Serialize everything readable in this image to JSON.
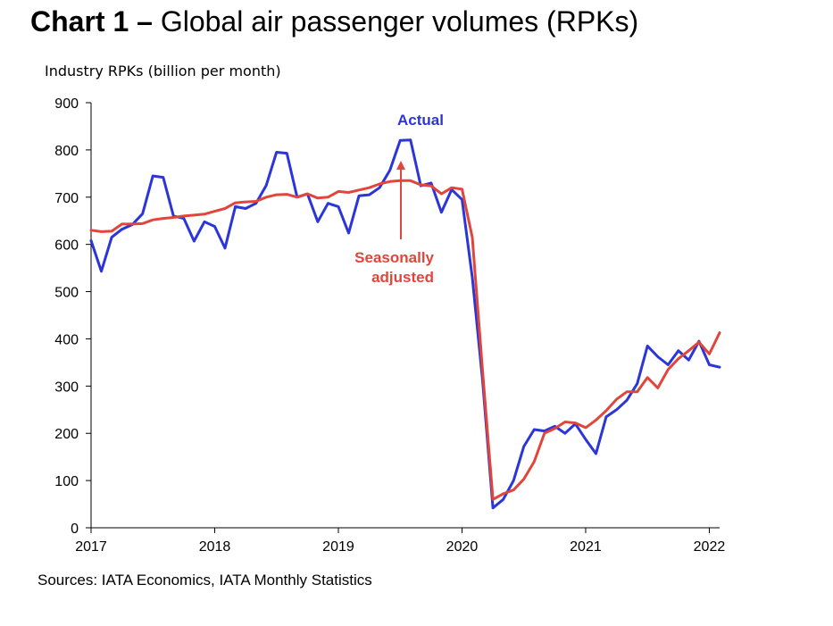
{
  "title": {
    "bold": "Chart 1 –",
    "rest": " Global air passenger volumes (RPKs)"
  },
  "source": "Sources: IATA Economics, IATA Monthly Statistics",
  "chart_data": {
    "type": "line",
    "ylabel": "Industry RPKs (billion per month)",
    "xlabel": "",
    "ylim": [
      0,
      900
    ],
    "yticks": [
      0,
      100,
      200,
      300,
      400,
      500,
      600,
      700,
      800,
      900
    ],
    "xlim": [
      "2017-01",
      "2022-02"
    ],
    "xticks": [
      "2017",
      "2018",
      "2019",
      "2020",
      "2021",
      "2022"
    ],
    "colors": {
      "actual": "#2b35d8",
      "seasonally_adjusted": "#e0463b"
    },
    "annotations": [
      {
        "text": "Actual",
        "series": "Actual"
      },
      {
        "text": "Seasonally",
        "series": "Seasonally adjusted"
      },
      {
        "text": "adjusted",
        "series": "Seasonally adjusted"
      }
    ],
    "x": [
      "2017-01",
      "2017-02",
      "2017-03",
      "2017-04",
      "2017-05",
      "2017-06",
      "2017-07",
      "2017-08",
      "2017-09",
      "2017-10",
      "2017-11",
      "2017-12",
      "2018-01",
      "2018-02",
      "2018-03",
      "2018-04",
      "2018-05",
      "2018-06",
      "2018-07",
      "2018-08",
      "2018-09",
      "2018-10",
      "2018-11",
      "2018-12",
      "2019-01",
      "2019-02",
      "2019-03",
      "2019-04",
      "2019-05",
      "2019-06",
      "2019-07",
      "2019-08",
      "2019-09",
      "2019-10",
      "2019-11",
      "2019-12",
      "2020-01",
      "2020-02",
      "2020-03",
      "2020-04",
      "2020-05",
      "2020-06",
      "2020-07",
      "2020-08",
      "2020-09",
      "2020-10",
      "2020-11",
      "2020-12",
      "2021-01",
      "2021-02",
      "2021-03",
      "2021-04",
      "2021-05",
      "2021-06",
      "2021-07",
      "2021-08",
      "2021-09",
      "2021-10",
      "2021-11",
      "2021-12",
      "2022-01",
      "2022-02"
    ],
    "series": [
      {
        "name": "Actual",
        "values": [
          608,
          543,
          615,
          632,
          642,
          665,
          745,
          742,
          660,
          655,
          607,
          648,
          638,
          592,
          680,
          676,
          687,
          725,
          795,
          793,
          700,
          707,
          648,
          687,
          680,
          624,
          703,
          705,
          720,
          757,
          820,
          821,
          724,
          730,
          668,
          716,
          695,
          530,
          310,
          42,
          60,
          100,
          172,
          208,
          205,
          215,
          200,
          220,
          187,
          157,
          235,
          250,
          270,
          305,
          385,
          362,
          345,
          375,
          355,
          395,
          345,
          340
        ]
      },
      {
        "name": "Seasonally adjusted",
        "values": [
          630,
          627,
          628,
          643,
          643,
          644,
          652,
          655,
          657,
          660,
          662,
          664,
          670,
          676,
          688,
          690,
          691,
          700,
          705,
          706,
          700,
          707,
          698,
          700,
          712,
          710,
          715,
          720,
          728,
          733,
          735,
          735,
          726,
          724,
          707,
          720,
          717,
          615,
          330,
          60,
          72,
          80,
          103,
          140,
          200,
          210,
          224,
          222,
          212,
          228,
          248,
          272,
          288,
          288,
          318,
          296,
          335,
          358,
          375,
          393,
          368,
          413
        ]
      }
    ]
  }
}
